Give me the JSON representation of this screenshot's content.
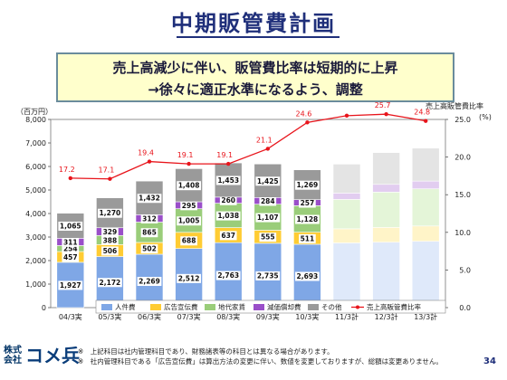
{
  "slide": {
    "title": "中期販管費計画",
    "callout_line1": "売上高減少に伴い、販管費比率は短期的に上昇",
    "callout_line2": "→徐々に適正水準になるよう、調整",
    "notes": [
      "※　上記科目は社内管理科目であり、財務諸表等の科目とは異なる場合があります。",
      "※　社内管理科目である「広告宣伝費」は算出方法の変更に伴い、数値を変更しておりますが、総額は変更ありません。"
    ],
    "page_number": "34",
    "logo_small": "株式\n会社",
    "logo_text": "コメ兵"
  },
  "chart_data": {
    "type": "bar",
    "categories": [
      "04/3実",
      "05/3実",
      "06/3実",
      "07/3実",
      "08/3実",
      "09/3実",
      "10/3実",
      "11/3計",
      "12/3計",
      "13/3計"
    ],
    "ylabel": "（百万円）",
    "y2label_line1": "売上高販管費比率",
    "y2label_line2": "(%)",
    "ylim": [
      0,
      8000
    ],
    "yticks": [
      0,
      1000,
      2000,
      3000,
      4000,
      5000,
      6000,
      7000,
      8000
    ],
    "ytick_labels": [
      "0",
      "1,000",
      "2,000",
      "3,000",
      "4,000",
      "5,000",
      "6,000",
      "7,000",
      "8,000"
    ],
    "y2lim": [
      0,
      25
    ],
    "y2ticks": [
      0,
      5,
      10,
      15,
      20,
      25
    ],
    "y2tick_labels": [
      "0.0",
      "5.0",
      "10.0",
      "15.0",
      "20.0",
      "25.0"
    ],
    "series": [
      {
        "name": "人件費",
        "color": "#7fa7e6",
        "plan_color": "#dfe9fa",
        "values": [
          1927,
          2172,
          2269,
          2512,
          2763,
          2735,
          2693,
          2750,
          2780,
          2820
        ],
        "labels": [
          "1,927",
          "2,172",
          "2,269",
          "2,512",
          "2,763",
          "2,735",
          "2,693",
          "",
          "",
          ""
        ]
      },
      {
        "name": "広告宣伝費",
        "color": "#ffcc33",
        "plan_color": "#fff4c8",
        "values": [
          457,
          506,
          502,
          688,
          637,
          555,
          511,
          600,
          630,
          650
        ],
        "labels": [
          "457",
          "506",
          "502",
          "688",
          "637",
          "555",
          "511",
          "",
          "",
          ""
        ]
      },
      {
        "name": "地代家賃",
        "color": "#9acd7a",
        "plan_color": "#e4f5d8",
        "values": [
          254,
          388,
          865,
          1005,
          1038,
          1107,
          1128,
          1250,
          1500,
          1580
        ],
        "labels": [
          "254",
          "388",
          "865",
          "1,005",
          "1,038",
          "1,107",
          "1,128",
          "",
          "",
          ""
        ]
      },
      {
        "name": "減価償却費",
        "color": "#9a4fc9",
        "plan_color": "#e2cdf0",
        "values": [
          311,
          329,
          312,
          295,
          260,
          284,
          257,
          270,
          330,
          330
        ],
        "labels": [
          "311",
          "329",
          "312",
          "295",
          "260",
          "284",
          "257",
          "",
          "",
          ""
        ]
      },
      {
        "name": "その他",
        "color": "#9a9a9a",
        "plan_color": "#e4e4e4",
        "values": [
          1065,
          1270,
          1432,
          1408,
          1453,
          1425,
          1269,
          1230,
          1350,
          1400
        ],
        "labels": [
          "1,065",
          "1,270",
          "1,432",
          "1,408",
          "1,453",
          "1,425",
          "1,269",
          "",
          "",
          ""
        ]
      }
    ],
    "ratio": {
      "name": "売上高販管費比率",
      "color": "#e8141b",
      "values": [
        17.2,
        17.1,
        19.4,
        19.1,
        19.1,
        21.1,
        24.6,
        25.5,
        25.7,
        24.8
      ],
      "labels": [
        "17.2",
        "17.1",
        "19.4",
        "19.1",
        "19.1",
        "21.1",
        "24.6",
        "",
        "25.7",
        "24.8"
      ]
    },
    "plan_from_index": 7,
    "legend_placement": "bottom-right",
    "grid": true
  }
}
